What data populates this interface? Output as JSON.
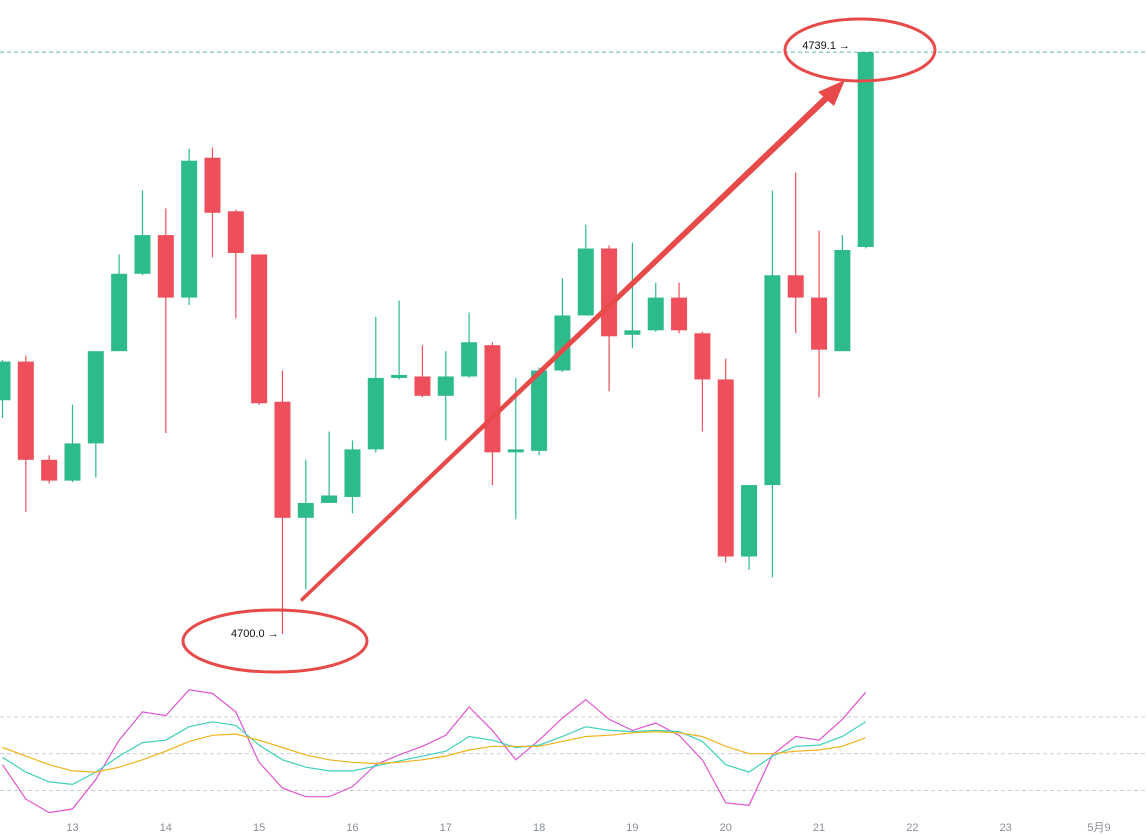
{
  "chart_data": {
    "type": "candlestick",
    "categories": [
      null,
      null,
      null,
      "13",
      null,
      null,
      null,
      "14",
      null,
      null,
      null,
      "15",
      null,
      null,
      null,
      "16",
      null,
      null,
      null,
      "17",
      null,
      null,
      null,
      "18",
      null,
      null,
      null,
      "19",
      null,
      null,
      null,
      "20",
      null,
      null,
      null,
      "21",
      null,
      null,
      null,
      "22",
      null,
      null,
      null,
      "23",
      null,
      null,
      null,
      "5月9"
    ],
    "open": [
      4715.7,
      4718.3,
      4711.7,
      4710.3,
      4712.8,
      4719.0,
      4724.2,
      4726.8,
      4722.6,
      4732.0,
      4728.4,
      4725.5,
      4715.6,
      4707.8,
      4708.8,
      4709.2,
      4712.4,
      4717.2,
      4717.3,
      4716.0,
      4717.3,
      4719.4,
      4712.2,
      4712.3,
      4717.7,
      4721.4,
      4725.9,
      4720.1,
      4720.4,
      4722.6,
      4720.2,
      4717.1,
      4705.2,
      4710.0,
      4724.1,
      4722.6,
      4719.0,
      4726.0,
      null,
      null,
      null,
      null,
      null,
      null,
      null,
      null,
      null,
      null
    ],
    "high": [
      4718.4,
      4718.7,
      4712.0,
      4715.4,
      4719.0,
      4725.5,
      4729.8,
      4728.6,
      4732.6,
      4732.7,
      4728.5,
      4725.5,
      4717.7,
      4711.7,
      4713.6,
      4713.0,
      4721.3,
      4722.4,
      4719.4,
      4719.0,
      4721.6,
      4719.6,
      4717.2,
      4717.9,
      4723.9,
      4727.5,
      4726.1,
      4726.3,
      4723.6,
      4723.6,
      4720.3,
      4718.5,
      4710.0,
      4729.8,
      4731.0,
      4727.1,
      4726.8,
      4739.1,
      null,
      null,
      null,
      null,
      null,
      null,
      null,
      null,
      null,
      null
    ],
    "low": [
      4714.5,
      4708.2,
      4710.1,
      4710.2,
      4710.5,
      4719.0,
      4724.1,
      4713.5,
      4722.1,
      4725.3,
      4721.2,
      4715.4,
      4700.0,
      4703.0,
      4708.8,
      4708.1,
      4712.2,
      4717.1,
      4715.9,
      4713.0,
      4717.2,
      4710.0,
      4707.7,
      4712.0,
      4717.6,
      4721.4,
      4716.3,
      4719.2,
      4720.3,
      4720.2,
      4713.6,
      4704.8,
      4704.3,
      4703.8,
      4720.2,
      4715.9,
      4719.0,
      4725.9,
      null,
      null,
      null,
      null,
      null,
      null,
      null,
      null,
      null,
      null
    ],
    "close": [
      4718.3,
      4711.7,
      4710.3,
      4712.8,
      4719.0,
      4724.2,
      4726.8,
      4722.6,
      4731.8,
      4728.3,
      4725.6,
      4715.5,
      4707.8,
      4708.8,
      4709.3,
      4712.4,
      4717.2,
      4717.4,
      4716.0,
      4717.3,
      4719.6,
      4712.2,
      4712.4,
      4717.7,
      4721.4,
      4725.9,
      4720.0,
      4720.4,
      4722.6,
      4720.4,
      4717.1,
      4705.2,
      4710.0,
      4724.1,
      4722.6,
      4719.1,
      4725.8,
      4739.1,
      null,
      null,
      null,
      null,
      null,
      null,
      null,
      null,
      null,
      null
    ],
    "up_color": "#2dbb8c",
    "down_color": "#ee4f5a",
    "ylim": [
      4696.9,
      4742.6
    ],
    "annotations": [
      "4739.1 →",
      "4700.0 →"
    ],
    "indicator": {
      "ylim": [
        -4,
        110
      ],
      "yticks": [
        20,
        50,
        80
      ],
      "series": [
        {
          "color": "#e055cf",
          "values": [
            41,
            13,
            2,
            5,
            29,
            61,
            84,
            81,
            102,
            99,
            84,
            43,
            22,
            15,
            15,
            23,
            41,
            49,
            56,
            65,
            88,
            69,
            45,
            61,
            79,
            94,
            78,
            69,
            75,
            65,
            45,
            10,
            8,
            49,
            64,
            61,
            78,
            100,
            null,
            null,
            null,
            null,
            null,
            null,
            null,
            null,
            null,
            null
          ]
        },
        {
          "color": "#3fd1b8",
          "values": [
            47,
            35,
            27,
            25,
            35,
            48,
            59,
            61,
            72,
            76,
            73,
            57,
            45,
            39,
            36,
            36,
            40,
            44,
            48,
            52,
            64,
            61,
            55,
            57,
            64,
            72,
            69,
            68,
            69,
            68,
            60,
            41,
            35,
            48,
            56,
            57,
            64,
            76,
            null,
            null,
            null,
            null,
            null,
            null,
            null,
            null,
            null,
            null
          ]
        },
        {
          "color": "#f0b31c",
          "values": [
            55,
            48,
            41,
            36,
            35,
            39,
            45,
            52,
            60,
            65,
            66,
            61,
            55,
            49,
            45,
            43,
            42,
            43,
            45,
            48,
            53,
            56,
            56,
            56,
            60,
            64,
            65,
            67,
            68,
            67,
            64,
            56,
            50,
            50,
            52,
            53,
            56,
            63,
            null,
            null,
            null,
            null,
            null,
            null,
            null,
            null,
            null,
            null
          ]
        }
      ]
    }
  }
}
